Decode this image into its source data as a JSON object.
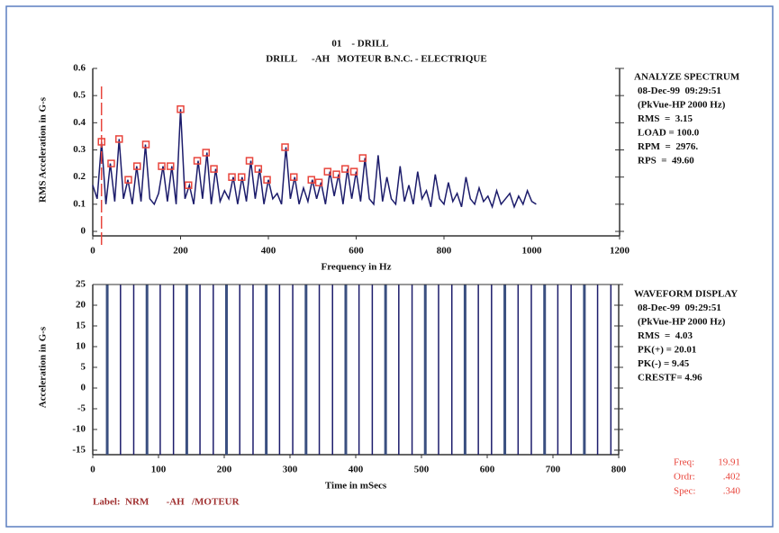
{
  "header": {
    "title": "01    - DRILL",
    "subtitle": "DRILL      -AH   MOTEUR B.N.C. - ELECTRIQUE"
  },
  "chart_data": [
    {
      "type": "line",
      "x_label": "Frequency in Hz",
      "y_label": "RMS Acceleration in G-s",
      "xlim": [
        0,
        1200
      ],
      "xticks": [
        0,
        200,
        400,
        600,
        800,
        1000,
        1200
      ],
      "ylim": [
        0,
        0.6
      ],
      "yticks": [
        0,
        0.1,
        0.2,
        0.3,
        0.4,
        0.5,
        0.6
      ],
      "x": [
        0,
        10,
        20,
        30,
        40,
        50,
        60,
        70,
        80,
        90,
        100,
        110,
        120,
        130,
        140,
        150,
        160,
        170,
        180,
        190,
        200,
        210,
        220,
        230,
        240,
        250,
        260,
        270,
        280,
        290,
        300,
        310,
        320,
        330,
        340,
        350,
        360,
        370,
        380,
        390,
        400,
        410,
        420,
        430,
        440,
        450,
        460,
        470,
        480,
        490,
        500,
        510,
        520,
        530,
        540,
        550,
        560,
        570,
        580,
        590,
        600,
        610,
        620,
        630,
        640,
        650,
        660,
        670,
        680,
        690,
        700,
        710,
        720,
        730,
        740,
        750,
        760,
        770,
        780,
        790,
        800,
        810,
        820,
        830,
        840,
        850,
        860,
        870,
        880,
        890,
        900,
        910,
        920,
        930,
        940,
        950,
        960,
        970,
        980,
        990,
        1000,
        1010
      ],
      "series": [
        {
          "color": "#1c1c6b",
          "values": [
            0.17,
            0.12,
            0.33,
            0.1,
            0.25,
            0.11,
            0.34,
            0.12,
            0.19,
            0.1,
            0.24,
            0.11,
            0.32,
            0.12,
            0.1,
            0.14,
            0.24,
            0.11,
            0.24,
            0.1,
            0.45,
            0.12,
            0.17,
            0.1,
            0.26,
            0.12,
            0.29,
            0.1,
            0.23,
            0.11,
            0.15,
            0.12,
            0.2,
            0.1,
            0.2,
            0.11,
            0.26,
            0.12,
            0.23,
            0.1,
            0.19,
            0.12,
            0.14,
            0.1,
            0.31,
            0.12,
            0.2,
            0.1,
            0.16,
            0.11,
            0.19,
            0.12,
            0.18,
            0.1,
            0.22,
            0.13,
            0.21,
            0.1,
            0.23,
            0.12,
            0.22,
            0.11,
            0.27,
            0.12,
            0.1,
            0.28,
            0.11,
            0.2,
            0.12,
            0.1,
            0.24,
            0.11,
            0.17,
            0.1,
            0.22,
            0.12,
            0.15,
            0.09,
            0.21,
            0.12,
            0.1,
            0.18,
            0.11,
            0.14,
            0.09,
            0.2,
            0.12,
            0.1,
            0.16,
            0.11,
            0.13,
            0.09,
            0.15,
            0.1,
            0.12,
            0.14,
            0.09,
            0.13,
            0.1,
            0.15,
            0.11,
            0.1
          ]
        }
      ],
      "peaks": {
        "color": "#e8453c",
        "x": [
          20,
          42,
          60,
          81,
          101,
          121,
          157,
          177,
          200,
          218,
          238,
          258,
          276,
          317,
          339,
          357,
          377,
          397,
          438,
          458,
          498,
          515,
          535,
          555,
          575,
          595,
          615
        ],
        "values": [
          0.33,
          0.25,
          0.34,
          0.19,
          0.24,
          0.32,
          0.24,
          0.24,
          0.45,
          0.17,
          0.26,
          0.29,
          0.23,
          0.2,
          0.2,
          0.26,
          0.23,
          0.19,
          0.31,
          0.2,
          0.19,
          0.18,
          0.22,
          0.21,
          0.23,
          0.22,
          0.27
        ]
      },
      "info": [
        "ANALYZE SPECTRUM",
        "08-Dec-99  09:29:51",
        "(PkVue-HP 2000 Hz)",
        "RMS  =  3.15",
        "LOAD = 100.0",
        "RPM  =  2976.",
        "RPS  =  49.60"
      ]
    },
    {
      "type": "waveform",
      "x_label": "Time in mSecs",
      "y_label": "Acceleration in G-s",
      "xlim": [
        0,
        800
      ],
      "xticks": [
        0,
        100,
        200,
        300,
        400,
        500,
        600,
        700,
        800
      ],
      "ylim": [
        -15,
        25
      ],
      "yticks": [
        -15,
        -10,
        -5,
        0,
        5,
        10,
        15,
        20,
        25
      ],
      "color": "#1c1c6b",
      "x": [
        22,
        42.2,
        62.3,
        82.5,
        102.6,
        122.8,
        143,
        163.1,
        183.3,
        203.4,
        223.6,
        243.8,
        263.9,
        284.1,
        304.2,
        324.4,
        344.6,
        364.7,
        384.9,
        405,
        425.2,
        445.4,
        465.5,
        485.7,
        505.8,
        526,
        546.2,
        566.3,
        586.5,
        606.6,
        626.8,
        647,
        667.1,
        687.3,
        707.4,
        727.6,
        747.8,
        767.9,
        788.1
      ],
      "info": [
        "WAVEFORM DISPLAY",
        "08-Dec-99  09:29:51",
        "(PkVue-HP 2000 Hz)",
        "RMS  =  4.03",
        "PK(+) = 20.01",
        "PK(-) = 9.45",
        "CRESTF= 4.96"
      ]
    }
  ],
  "cursor": {
    "color": "#e8453c",
    "rows": [
      {
        "label": "Freq:",
        "value": 19.91
      },
      {
        "label": "Ordr:",
        "value": {
          "value": 0.402,
          "label": ".402"
        }
      },
      {
        "label": "Spec:",
        "value": {
          "value": 0.34,
          "label": ".340"
        }
      }
    ]
  },
  "footer": "Label:  NRM       -AH   /MOTEUR"
}
